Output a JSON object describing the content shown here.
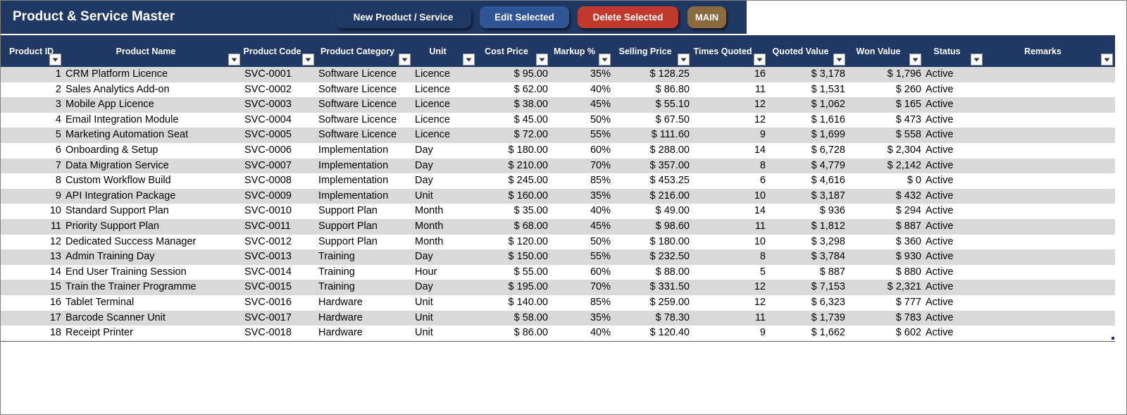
{
  "title": "Product & Service Master",
  "buttons": {
    "new": "New Product / Service",
    "edit": "Edit Selected",
    "delete": "Delete Selected",
    "main": "MAIN"
  },
  "colors": {
    "header_bg": "#1f3864",
    "btn_new": "#203864",
    "btn_edit": "#2f5597",
    "btn_delete": "#c0392b",
    "btn_main": "#8b6b3d",
    "row_band": "#d9d9d9"
  },
  "columns": [
    "Product ID",
    "Product Name",
    "Product Code",
    "Product Category",
    "Unit",
    "Cost Price",
    "Markup %",
    "Selling Price",
    "Times Quoted",
    "Quoted Value",
    "Won Value",
    "Status",
    "Remarks"
  ],
  "rows": [
    [
      "1",
      "CRM Platform Licence",
      "SVC-0001",
      "Software Licence",
      "Licence",
      "$ 95.00",
      "35%",
      "$ 128.25",
      "16",
      "$ 3,178",
      "$ 1,796",
      "Active",
      ""
    ],
    [
      "2",
      "Sales Analytics Add-on",
      "SVC-0002",
      "Software Licence",
      "Licence",
      "$ 62.00",
      "40%",
      "$ 86.80",
      "11",
      "$ 1,531",
      "$ 260",
      "Active",
      ""
    ],
    [
      "3",
      "Mobile App Licence",
      "SVC-0003",
      "Software Licence",
      "Licence",
      "$ 38.00",
      "45%",
      "$ 55.10",
      "12",
      "$ 1,062",
      "$ 165",
      "Active",
      ""
    ],
    [
      "4",
      "Email Integration Module",
      "SVC-0004",
      "Software Licence",
      "Licence",
      "$ 45.00",
      "50%",
      "$ 67.50",
      "12",
      "$ 1,616",
      "$ 473",
      "Active",
      ""
    ],
    [
      "5",
      "Marketing Automation Seat",
      "SVC-0005",
      "Software Licence",
      "Licence",
      "$ 72.00",
      "55%",
      "$ 111.60",
      "9",
      "$ 1,699",
      "$ 558",
      "Active",
      ""
    ],
    [
      "6",
      "Onboarding & Setup",
      "SVC-0006",
      "Implementation",
      "Day",
      "$ 180.00",
      "60%",
      "$ 288.00",
      "14",
      "$ 6,728",
      "$ 2,304",
      "Active",
      ""
    ],
    [
      "7",
      "Data Migration Service",
      "SVC-0007",
      "Implementation",
      "Day",
      "$ 210.00",
      "70%",
      "$ 357.00",
      "8",
      "$ 4,779",
      "$ 2,142",
      "Active",
      ""
    ],
    [
      "8",
      "Custom Workflow Build",
      "SVC-0008",
      "Implementation",
      "Day",
      "$ 245.00",
      "85%",
      "$ 453.25",
      "6",
      "$ 4,616",
      "$ 0",
      "Active",
      ""
    ],
    [
      "9",
      "API Integration Package",
      "SVC-0009",
      "Implementation",
      "Unit",
      "$ 160.00",
      "35%",
      "$ 216.00",
      "10",
      "$ 3,187",
      "$ 432",
      "Active",
      ""
    ],
    [
      "10",
      "Standard Support Plan",
      "SVC-0010",
      "Support Plan",
      "Month",
      "$ 35.00",
      "40%",
      "$ 49.00",
      "14",
      "$ 936",
      "$ 294",
      "Active",
      ""
    ],
    [
      "11",
      "Priority Support Plan",
      "SVC-0011",
      "Support Plan",
      "Month",
      "$ 68.00",
      "45%",
      "$ 98.60",
      "11",
      "$ 1,812",
      "$ 887",
      "Active",
      ""
    ],
    [
      "12",
      "Dedicated Success Manager",
      "SVC-0012",
      "Support Plan",
      "Month",
      "$ 120.00",
      "50%",
      "$ 180.00",
      "10",
      "$ 3,298",
      "$ 360",
      "Active",
      ""
    ],
    [
      "13",
      "Admin Training Day",
      "SVC-0013",
      "Training",
      "Day",
      "$ 150.00",
      "55%",
      "$ 232.50",
      "8",
      "$ 3,784",
      "$ 930",
      "Active",
      ""
    ],
    [
      "14",
      "End User Training Session",
      "SVC-0014",
      "Training",
      "Hour",
      "$ 55.00",
      "60%",
      "$ 88.00",
      "5",
      "$ 887",
      "$ 880",
      "Active",
      ""
    ],
    [
      "15",
      "Train the Trainer Programme",
      "SVC-0015",
      "Training",
      "Day",
      "$ 195.00",
      "70%",
      "$ 331.50",
      "12",
      "$ 7,153",
      "$ 2,321",
      "Active",
      ""
    ],
    [
      "16",
      "Tablet Terminal",
      "SVC-0016",
      "Hardware",
      "Unit",
      "$ 140.00",
      "85%",
      "$ 259.00",
      "12",
      "$ 6,323",
      "$ 777",
      "Active",
      ""
    ],
    [
      "17",
      "Barcode Scanner Unit",
      "SVC-0017",
      "Hardware",
      "Unit",
      "$ 58.00",
      "35%",
      "$ 78.30",
      "11",
      "$ 1,739",
      "$ 783",
      "Active",
      ""
    ],
    [
      "18",
      "Receipt Printer",
      "SVC-0018",
      "Hardware",
      "Unit",
      "$ 86.00",
      "40%",
      "$ 120.40",
      "9",
      "$ 1,662",
      "$ 602",
      "Active",
      ""
    ]
  ]
}
